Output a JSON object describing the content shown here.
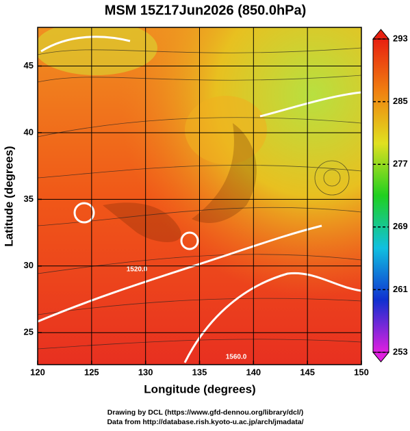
{
  "chart_data": {
    "type": "map",
    "title": "MSM 15Z17Jun2026 (850.0hPa)",
    "x_label": "Longitude (degrees)",
    "y_label": "Latitude  (degrees)",
    "xlim": [
      120,
      150
    ],
    "ylim": [
      22.6,
      47.9
    ],
    "xticks": [
      120,
      125,
      130,
      135,
      140,
      145,
      150
    ],
    "yticks": [
      25,
      30,
      35,
      40,
      45
    ],
    "grid": true,
    "contour_labels": [
      "1520.0",
      "1560.0"
    ],
    "colorbar": {
      "lim": [
        253,
        293
      ],
      "ticks": [
        253,
        261,
        269,
        277,
        285,
        293
      ],
      "colors": [
        "#e020e0",
        "#1030d0",
        "#10c0e0",
        "#20d020",
        "#e0e020",
        "#f08010",
        "#e82010"
      ]
    },
    "credits": [
      "Drawing by DCL (https://www.gfd-dennou.org/library/dcl/)",
      "Data from http://database.rish.kyoto-u.ac.jp/arch/jmadata/"
    ]
  }
}
